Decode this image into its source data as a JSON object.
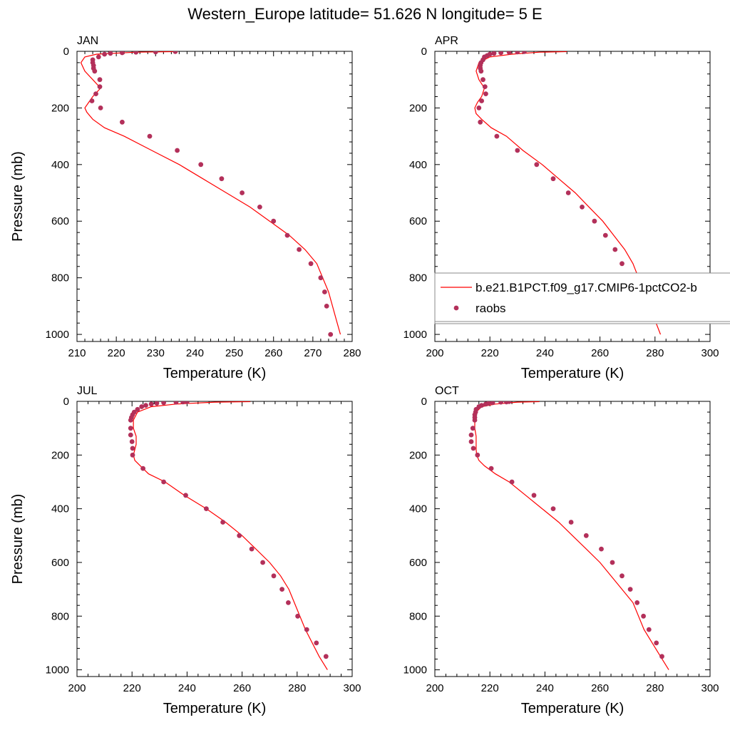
{
  "figure": {
    "title": "Western_Europe  latitude= 51.626 N longitude= 5 E"
  },
  "colors": {
    "model": "#ff0000",
    "obs": "#b3305a",
    "axis": "#000000",
    "legend_border": "#888888"
  },
  "chart_data": [
    {
      "type": "line",
      "panel_label": "JAN",
      "xlabel": "Temperature (K)",
      "ylabel": "Pressure (mb)",
      "xlim": [
        210,
        280
      ],
      "ylim": [
        1025,
        0
      ],
      "y_inverted": true,
      "xticks": [
        210,
        220,
        230,
        240,
        250,
        260,
        270,
        280
      ],
      "yticks": [
        0,
        200,
        400,
        600,
        800,
        1000
      ],
      "series": [
        {
          "name": "b.e21.B1PCT.f09_g17.CMIP6-1pctCO2-b",
          "kind": "line",
          "x": [
            235,
            225,
            215,
            212,
            211,
            212,
            214,
            216,
            214,
            213,
            212,
            212.5,
            214,
            217,
            222,
            229,
            236,
            242,
            248,
            254,
            259,
            264,
            268,
            271,
            274,
            276,
            277
          ],
          "y": [
            1,
            3,
            10,
            20,
            40,
            70,
            100,
            130,
            160,
            180,
            200,
            215,
            240,
            270,
            300,
            350,
            400,
            450,
            500,
            550,
            600,
            650,
            700,
            750,
            850,
            950,
            1000
          ]
        },
        {
          "name": "raobs",
          "kind": "scatter",
          "x": [
            235,
            230,
            225,
            221.5,
            218.5,
            217,
            215.5,
            214,
            214,
            214.2,
            214.2,
            214.5,
            215.8,
            215.8,
            214.8,
            213.8,
            216,
            221.5,
            228.5,
            235.5,
            241.5,
            246.8,
            252,
            256.5,
            260,
            263.5,
            266.5,
            269.5,
            272,
            273,
            273.5,
            274.5
          ],
          "y": [
            1,
            2,
            3,
            5,
            7,
            10,
            20,
            30,
            40,
            50,
            60,
            70,
            100,
            125,
            150,
            175,
            200,
            250,
            300,
            350,
            400,
            450,
            500,
            550,
            600,
            650,
            700,
            750,
            800,
            850,
            900,
            1000
          ]
        }
      ]
    },
    {
      "type": "line",
      "panel_label": "APR",
      "xlabel": "Temperature (K)",
      "ylabel": "",
      "xlim": [
        200,
        300
      ],
      "ylim": [
        1025,
        0
      ],
      "y_inverted": true,
      "xticks": [
        200,
        220,
        240,
        260,
        280,
        300
      ],
      "yticks": [
        0,
        200,
        400,
        600,
        800,
        1000
      ],
      "legend": {
        "position": "right",
        "entries": [
          {
            "label": "b.e21.B1PCT.f09_g17.CMIP6-1pctCO2-b",
            "kind": "line"
          },
          {
            "label": "raobs",
            "kind": "marker"
          }
        ]
      },
      "series": [
        {
          "name": "b.e21.B1PCT.f09_g17.CMIP6-1pctCO2-b",
          "kind": "line",
          "x": [
            248,
            238,
            228,
            220,
            216,
            215,
            216,
            218,
            217,
            215.5,
            214.5,
            215,
            217,
            220.5,
            226,
            232,
            239,
            245,
            251,
            256,
            261,
            265,
            269,
            272,
            276,
            280,
            282
          ],
          "y": [
            1,
            3,
            10,
            20,
            40,
            70,
            100,
            130,
            160,
            180,
            200,
            220,
            240,
            270,
            300,
            350,
            400,
            450,
            500,
            550,
            600,
            650,
            700,
            750,
            850,
            950,
            1000
          ]
        },
        {
          "name": "raobs",
          "kind": "scatter",
          "x": [
            232.5,
            230,
            227,
            224,
            221.5,
            220,
            219,
            218,
            217.5,
            216.8,
            216.5,
            216.5,
            216.8,
            217.5,
            218.2,
            218.5,
            217,
            216,
            216.5,
            222.5,
            230,
            237,
            243,
            248.5,
            253.5,
            258,
            262,
            265.5,
            268,
            271,
            273.5,
            277,
            280
          ],
          "y": [
            1,
            2,
            3,
            5,
            7,
            10,
            15,
            20,
            30,
            40,
            50,
            60,
            70,
            100,
            125,
            150,
            175,
            200,
            250,
            300,
            350,
            400,
            450,
            500,
            550,
            600,
            650,
            700,
            750,
            800,
            850,
            900,
            950
          ]
        }
      ]
    },
    {
      "type": "line",
      "panel_label": "JUL",
      "xlabel": "Temperature (K)",
      "ylabel": "Pressure (mb)",
      "xlim": [
        200,
        300
      ],
      "ylim": [
        1025,
        0
      ],
      "y_inverted": true,
      "xticks": [
        200,
        220,
        240,
        260,
        280,
        300
      ],
      "yticks": [
        0,
        200,
        400,
        600,
        800,
        1000
      ],
      "series": [
        {
          "name": "b.e21.B1PCT.f09_g17.CMIP6-1pctCO2-b",
          "kind": "line",
          "x": [
            263,
            250,
            236,
            227,
            222,
            220.5,
            220.5,
            221.5,
            221.5,
            221,
            220.5,
            221,
            223,
            226,
            232,
            239,
            247,
            254,
            260,
            265,
            270,
            274,
            277,
            279,
            283,
            288,
            291
          ],
          "y": [
            1,
            3,
            10,
            20,
            40,
            70,
            100,
            130,
            160,
            180,
            200,
            220,
            240,
            270,
            300,
            350,
            400,
            450,
            500,
            550,
            600,
            650,
            700,
            750,
            850,
            950,
            1000
          ]
        },
        {
          "name": "raobs",
          "kind": "scatter",
          "x": [
            240,
            238.5,
            236,
            231.5,
            229,
            227,
            225,
            223.5,
            222,
            220.8,
            220.2,
            219.8,
            219.5,
            219.5,
            219.5,
            220,
            220.2,
            220.2,
            224,
            231.5,
            239.5,
            247,
            253,
            259,
            263.5,
            267.5,
            271.5,
            274.5,
            276.8,
            280.2,
            283.5,
            287,
            290.5
          ],
          "y": [
            1,
            2,
            3,
            5,
            7,
            10,
            15,
            20,
            30,
            40,
            50,
            60,
            70,
            100,
            125,
            150,
            175,
            200,
            250,
            300,
            350,
            400,
            450,
            500,
            550,
            600,
            650,
            700,
            750,
            800,
            850,
            900,
            950
          ]
        }
      ]
    },
    {
      "type": "line",
      "panel_label": "OCT",
      "xlabel": "Temperature (K)",
      "ylabel": "",
      "xlim": [
        200,
        300
      ],
      "ylim": [
        1025,
        0
      ],
      "y_inverted": true,
      "xticks": [
        200,
        220,
        240,
        260,
        280,
        300
      ],
      "yticks": [
        0,
        200,
        400,
        600,
        800,
        1000
      ],
      "series": [
        {
          "name": "b.e21.B1PCT.f09_g17.CMIP6-1pctCO2-b",
          "kind": "line",
          "x": [
            238,
            230,
            222,
            217,
            215,
            214.5,
            214.5,
            215,
            215,
            215,
            215.2,
            216,
            218,
            222,
            227,
            233,
            239,
            245,
            250,
            255,
            260,
            264,
            268,
            272,
            276,
            282,
            285
          ],
          "y": [
            1,
            3,
            10,
            20,
            40,
            70,
            100,
            130,
            160,
            180,
            200,
            220,
            240,
            270,
            300,
            350,
            400,
            450,
            500,
            550,
            600,
            650,
            700,
            750,
            850,
            950,
            1000
          ]
        },
        {
          "name": "raobs",
          "kind": "scatter",
          "x": [
            227,
            226,
            224,
            221,
            219.5,
            218.5,
            217,
            216,
            215,
            214.8,
            214.5,
            214.5,
            214.5,
            213.8,
            213.2,
            213.2,
            214,
            215.5,
            220.5,
            228,
            236,
            243,
            249.5,
            255,
            260.5,
            264.5,
            268,
            271,
            273.5,
            275.8,
            277.8,
            280.5,
            282.5
          ],
          "y": [
            1,
            2,
            3,
            5,
            7,
            10,
            15,
            20,
            30,
            40,
            50,
            60,
            70,
            100,
            125,
            150,
            175,
            200,
            250,
            300,
            350,
            400,
            450,
            500,
            550,
            600,
            650,
            700,
            750,
            800,
            850,
            900,
            950
          ]
        }
      ]
    }
  ]
}
